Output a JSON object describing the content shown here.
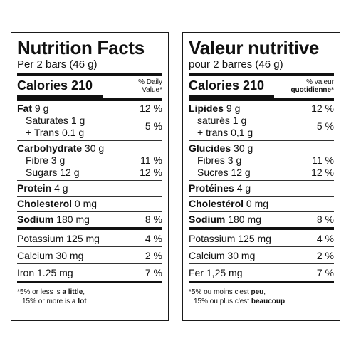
{
  "en": {
    "title": "Nutrition Facts",
    "serving": "Per 2 bars (46 g)",
    "calories": "Calories 210",
    "dv_line1": "% Daily",
    "dv_line2": "Value*",
    "fat_label": "Fat",
    "fat_amt": " 9 g",
    "fat_dv": "12 %",
    "sat": "Saturates 1 g",
    "trans": "+ Trans 0.1 g",
    "sat_trans_dv": "5 %",
    "carb_label": "Carbohydrate",
    "carb_amt": " 30 g",
    "fibre": "Fibre 3 g",
    "fibre_dv": "11 %",
    "sugars": "Sugars 12 g",
    "sugars_dv": "12 %",
    "protein_label": "Protein",
    "protein_amt": " 4 g",
    "chol_label": "Cholesterol",
    "chol_amt": " 0 mg",
    "sodium_label": "Sodium",
    "sodium_amt": " 180 mg",
    "sodium_dv": "8 %",
    "potassium": "Potassium 125 mg",
    "potassium_dv": "4 %",
    "calcium": "Calcium 30 mg",
    "calcium_dv": "2 %",
    "iron": "Iron 1.25 mg",
    "iron_dv": "7 %",
    "foot_a": "*5% or less is ",
    "foot_b": "a little",
    "foot_c": ",",
    "foot_d": "15% or more is ",
    "foot_e": "a lot"
  },
  "fr": {
    "title": "Valeur nutritive",
    "serving": "pour 2 barres (46 g)",
    "calories": "Calories 210",
    "dv_line1": "% valeur",
    "dv_line2": "quotidienne*",
    "fat_label": "Lipides",
    "fat_amt": " 9 g",
    "fat_dv": "12 %",
    "sat": "saturés 1 g",
    "trans": "+ trans 0,1 g",
    "sat_trans_dv": "5 %",
    "carb_label": "Glucides",
    "carb_amt": " 30 g",
    "fibre": "Fibres 3 g",
    "fibre_dv": "11 %",
    "sugars": "Sucres 12 g",
    "sugars_dv": "12 %",
    "protein_label": "Protéines",
    "protein_amt": " 4 g",
    "chol_label": "Cholestérol",
    "chol_amt": " 0 mg",
    "sodium_label": "Sodium",
    "sodium_amt": " 180 mg",
    "sodium_dv": "8 %",
    "potassium": "Potassium 125 mg",
    "potassium_dv": "4 %",
    "calcium": "Calcium 30 mg",
    "calcium_dv": "2 %",
    "iron": "Fer 1,25 mg",
    "iron_dv": "7 %",
    "foot_a": "*5% ou moins c'est ",
    "foot_b": "peu",
    "foot_c": ",",
    "foot_d": "15% ou plus c'est ",
    "foot_e": "beaucoup"
  }
}
